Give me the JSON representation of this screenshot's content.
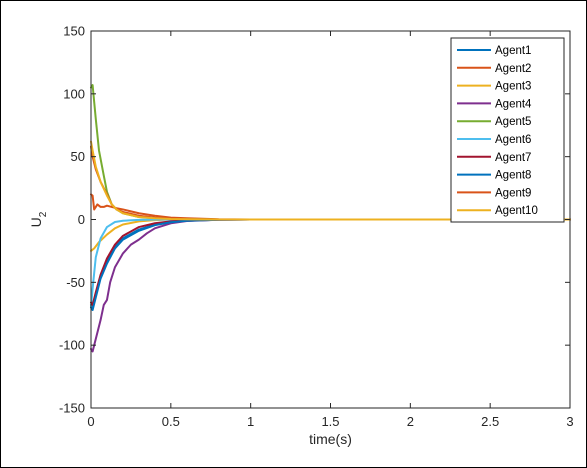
{
  "chart_data": {
    "type": "line",
    "xlabel": "time(s)",
    "ylabel": "U",
    "ylabel_subscript": "2",
    "xlim": [
      0,
      3
    ],
    "ylim": [
      -150,
      150
    ],
    "xticks": [
      "0",
      "0.5",
      "1",
      "1.5",
      "2",
      "2.5",
      "3"
    ],
    "xtick_values": [
      0,
      0.5,
      1,
      1.5,
      2,
      2.5,
      3
    ],
    "yticks": [
      "-150",
      "-100",
      "-50",
      "0",
      "50",
      "100",
      "150"
    ],
    "ytick_values": [
      -150,
      -100,
      -50,
      0,
      50,
      100,
      150
    ],
    "grid": false,
    "legend_position": "top-right",
    "series": [
      {
        "name": "Agent1",
        "color": "#0072BD",
        "x": [
          0,
          0.01,
          0.03,
          0.06,
          0.1,
          0.15,
          0.2,
          0.3,
          0.4,
          0.5,
          0.6,
          0.8,
          1.0,
          3.0
        ],
        "y": [
          -68,
          -70,
          -60,
          -45,
          -33,
          -22,
          -15,
          -8,
          -4,
          -2,
          -1,
          -0.2,
          0,
          0
        ]
      },
      {
        "name": "Agent2",
        "color": "#D95319",
        "x": [
          0,
          0.01,
          0.02,
          0.04,
          0.06,
          0.08,
          0.1,
          0.13,
          0.16,
          0.2,
          0.3,
          0.4,
          0.5,
          0.6,
          0.8,
          1.0,
          3.0
        ],
        "y": [
          20,
          19,
          8,
          12,
          10,
          10,
          11,
          10,
          9,
          8,
          5,
          3,
          1.5,
          1,
          0.2,
          0,
          0
        ]
      },
      {
        "name": "Agent3",
        "color": "#EDB120",
        "x": [
          0,
          0.02,
          0.05,
          0.1,
          0.15,
          0.2,
          0.3,
          0.4,
          0.5,
          0.6,
          0.8,
          1.0,
          3.0
        ],
        "y": [
          -25,
          -23,
          -18,
          -12,
          -7,
          -4,
          -1.5,
          -0.5,
          0,
          0,
          0,
          0,
          0
        ]
      },
      {
        "name": "Agent4",
        "color": "#7E2F8E",
        "x": [
          0,
          0.01,
          0.03,
          0.06,
          0.08,
          0.1,
          0.12,
          0.15,
          0.2,
          0.25,
          0.3,
          0.35,
          0.4,
          0.5,
          0.6,
          0.8,
          1.0,
          3.0
        ],
        "y": [
          -103,
          -105,
          -95,
          -80,
          -68,
          -64,
          -50,
          -38,
          -27,
          -20,
          -16,
          -11,
          -7,
          -3,
          -1.2,
          -0.2,
          0,
          0
        ]
      },
      {
        "name": "Agent5",
        "color": "#77AC30",
        "x": [
          0,
          0.01,
          0.03,
          0.05,
          0.08,
          0.1,
          0.13,
          0.16,
          0.2,
          0.3,
          0.4,
          0.5,
          0.6,
          0.8,
          1.0,
          3.0
        ],
        "y": [
          105,
          107,
          80,
          55,
          35,
          22,
          12,
          8,
          5,
          2,
          1,
          0.4,
          0.2,
          0,
          0,
          0
        ]
      },
      {
        "name": "Agent6",
        "color": "#4DBEEE",
        "x": [
          0,
          0.01,
          0.03,
          0.06,
          0.1,
          0.15,
          0.2,
          0.3,
          0.4,
          0.5,
          0.6,
          0.8,
          1.0,
          3.0
        ],
        "y": [
          -70,
          -55,
          -30,
          -15,
          -6,
          -2,
          -1,
          -0.3,
          0,
          0,
          0,
          0,
          0,
          0
        ]
      },
      {
        "name": "Agent7",
        "color": "#A2142F",
        "x": [
          0,
          0.01,
          0.03,
          0.06,
          0.1,
          0.15,
          0.2,
          0.3,
          0.4,
          0.5,
          0.6,
          0.8,
          1.0,
          3.0
        ],
        "y": [
          -66,
          -68,
          -58,
          -44,
          -31,
          -20,
          -13,
          -6,
          -3,
          -1.5,
          -0.6,
          -0.1,
          0,
          0
        ]
      },
      {
        "name": "Agent8",
        "color": "#0072BD",
        "x": [
          0,
          0.01,
          0.03,
          0.06,
          0.1,
          0.15,
          0.2,
          0.3,
          0.4,
          0.5,
          0.6,
          0.8,
          1.0,
          3.0
        ],
        "y": [
          -70,
          -72,
          -62,
          -47,
          -35,
          -23,
          -16,
          -9,
          -4.5,
          -2.2,
          -1,
          -0.2,
          0,
          0
        ]
      },
      {
        "name": "Agent9",
        "color": "#D95319",
        "x": [
          0,
          0.01,
          0.03,
          0.06,
          0.1,
          0.13,
          0.16,
          0.2,
          0.3,
          0.4,
          0.5,
          0.6,
          0.8,
          1.0,
          3.0
        ],
        "y": [
          58,
          50,
          40,
          30,
          20,
          12,
          8,
          6,
          3,
          1.5,
          0.7,
          0.3,
          0,
          0,
          0
        ]
      },
      {
        "name": "Agent10",
        "color": "#EDB120",
        "x": [
          0,
          0.01,
          0.03,
          0.06,
          0.1,
          0.13,
          0.16,
          0.2,
          0.3,
          0.4,
          0.5,
          0.6,
          0.8,
          1.0,
          3.0
        ],
        "y": [
          62,
          55,
          42,
          30,
          19,
          12,
          8,
          5,
          2,
          1,
          0.4,
          0.2,
          0,
          0,
          0
        ]
      }
    ]
  }
}
